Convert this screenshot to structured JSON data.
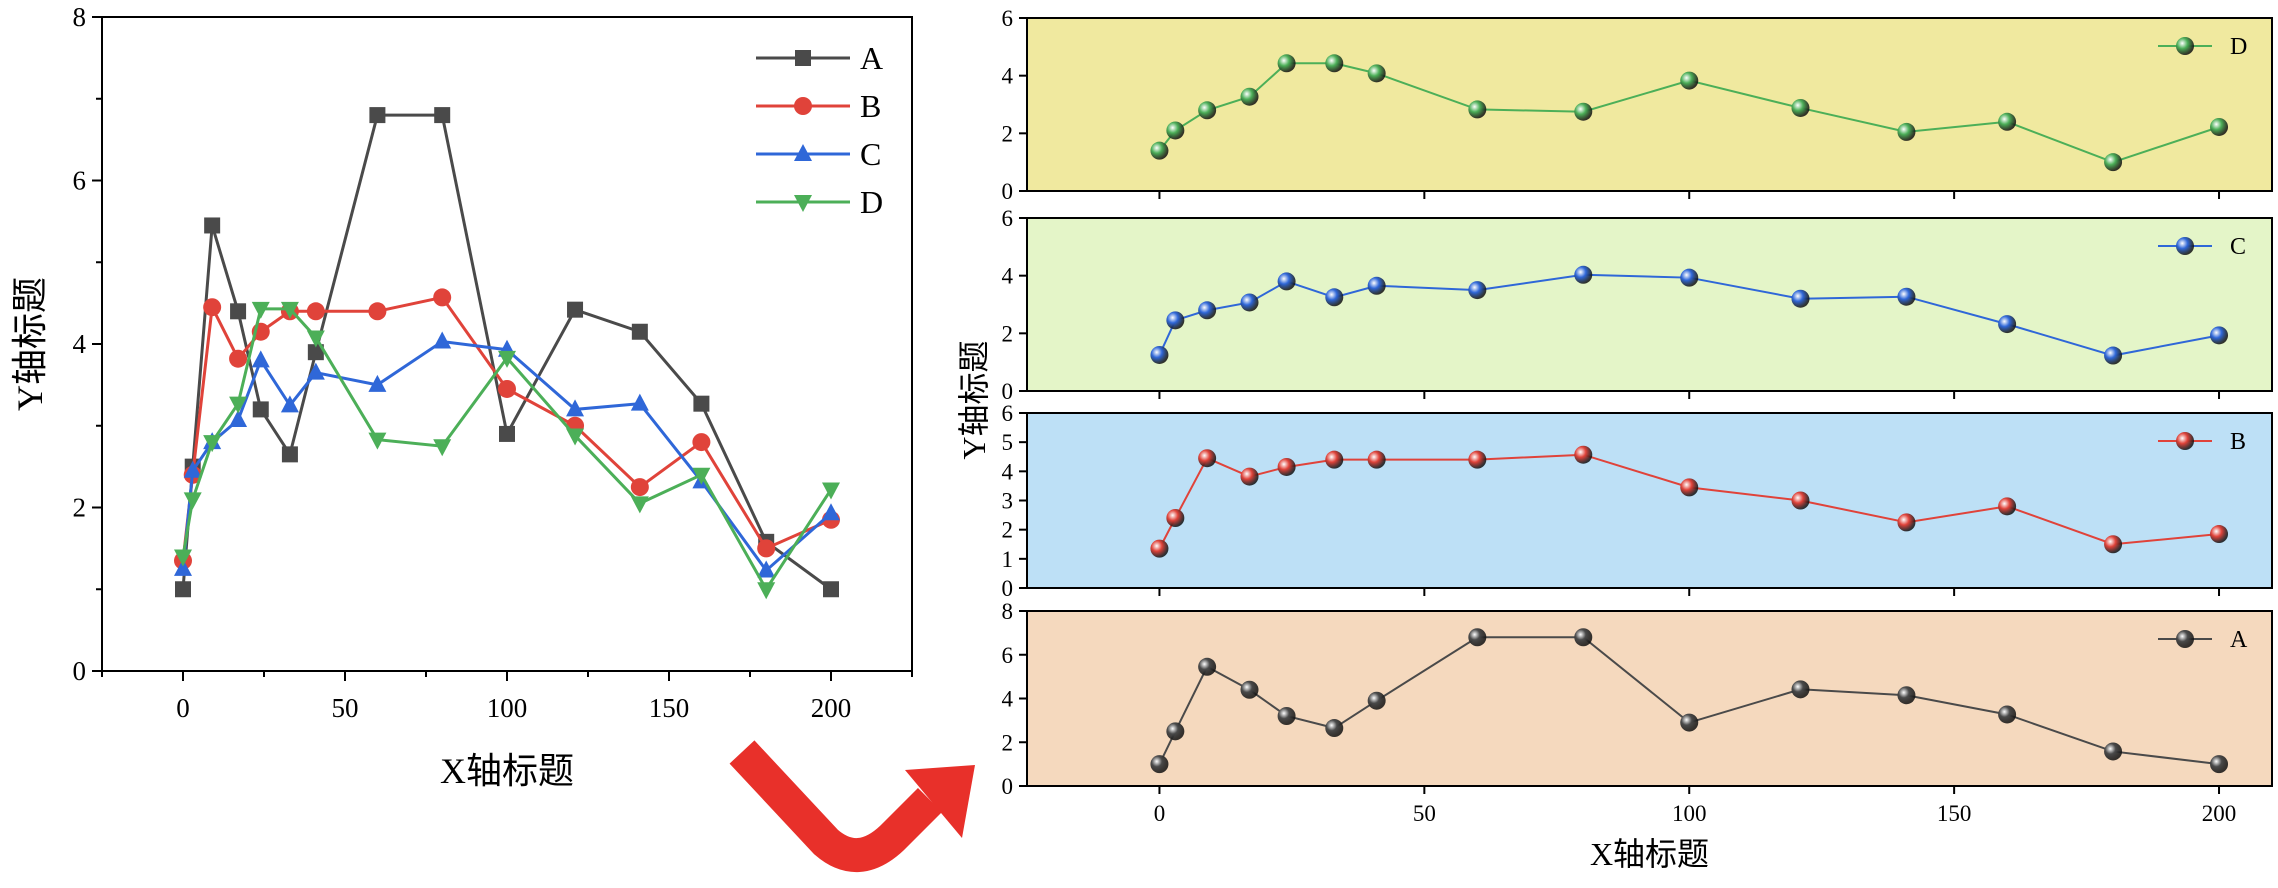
{
  "chart_data": [
    {
      "type": "line",
      "title": "",
      "xlabel": "X轴标题",
      "ylabel": "Y轴标题",
      "xlim": [
        -25,
        225
      ],
      "ylim": [
        0,
        8
      ],
      "xticks": [
        0,
        50,
        100,
        150,
        200
      ],
      "yticks": [
        0,
        2,
        4,
        6,
        8
      ],
      "legend_position": "top-right",
      "series": [
        {
          "name": "A",
          "marker": "square",
          "color": "#4a4a4a",
          "x": [
            0,
            3,
            9,
            17,
            24,
            33,
            41,
            60,
            80,
            100,
            121,
            141,
            160,
            180,
            200
          ],
          "y": [
            1.0,
            2.5,
            5.45,
            4.4,
            3.2,
            2.65,
            3.9,
            6.8,
            6.8,
            2.9,
            4.42,
            4.15,
            3.27,
            1.58,
            1.0
          ]
        },
        {
          "name": "B",
          "marker": "circle",
          "color": "#e0433a",
          "x": [
            0,
            3,
            9,
            17,
            24,
            33,
            41,
            60,
            80,
            100,
            121,
            141,
            160,
            180,
            200
          ],
          "y": [
            1.35,
            2.4,
            4.45,
            3.82,
            4.15,
            4.4,
            4.4,
            4.4,
            4.57,
            3.45,
            3.0,
            2.25,
            2.8,
            1.5,
            1.85
          ]
        },
        {
          "name": "C",
          "marker": "triangle-up",
          "color": "#2f67d8",
          "x": [
            0,
            3,
            9,
            17,
            24,
            33,
            41,
            60,
            80,
            100,
            121,
            141,
            160,
            180,
            200
          ],
          "y": [
            1.25,
            2.45,
            2.8,
            3.07,
            3.8,
            3.25,
            3.65,
            3.5,
            4.03,
            3.93,
            3.2,
            3.27,
            2.32,
            1.23,
            1.93
          ]
        },
        {
          "name": "D",
          "marker": "triangle-down",
          "color": "#4caf58",
          "x": [
            0,
            3,
            9,
            17,
            24,
            33,
            41,
            60,
            80,
            100,
            121,
            141,
            160,
            180,
            200
          ],
          "y": [
            1.4,
            2.1,
            2.8,
            3.27,
            4.43,
            4.43,
            4.08,
            2.83,
            2.75,
            3.83,
            2.88,
            2.05,
            2.4,
            1.0,
            2.22
          ]
        }
      ]
    },
    {
      "type": "line",
      "layout": "stacked-panels",
      "title": "",
      "xlabel": "X轴标题",
      "ylabel": "Y轴标题",
      "xlim": [
        -25,
        210
      ],
      "xticks": [
        0,
        50,
        100,
        150,
        200
      ],
      "panels": [
        {
          "name": "D",
          "color": "#4caf58",
          "background": "#f0e99f",
          "ylim": [
            0,
            6
          ],
          "yticks": [
            0,
            2,
            4,
            6
          ],
          "x": [
            0,
            3,
            9,
            17,
            24,
            33,
            41,
            60,
            80,
            100,
            121,
            141,
            160,
            180,
            200
          ],
          "y": [
            1.4,
            2.1,
            2.8,
            3.27,
            4.43,
            4.43,
            4.08,
            2.83,
            2.75,
            3.83,
            2.88,
            2.05,
            2.4,
            1.0,
            2.22
          ]
        },
        {
          "name": "C",
          "color": "#2f67d8",
          "background": "#e4f5c8",
          "ylim": [
            0,
            6
          ],
          "yticks": [
            0,
            2,
            4,
            6
          ],
          "x": [
            0,
            3,
            9,
            17,
            24,
            33,
            41,
            60,
            80,
            100,
            121,
            141,
            160,
            180,
            200
          ],
          "y": [
            1.25,
            2.45,
            2.8,
            3.07,
            3.8,
            3.25,
            3.65,
            3.5,
            4.03,
            3.93,
            3.2,
            3.27,
            2.32,
            1.23,
            1.93
          ]
        },
        {
          "name": "B",
          "color": "#e0433a",
          "background": "#bde0f6",
          "ylim": [
            0,
            6
          ],
          "yticks": [
            0,
            1,
            2,
            3,
            4,
            5,
            6
          ],
          "x": [
            0,
            3,
            9,
            17,
            24,
            33,
            41,
            60,
            80,
            100,
            121,
            141,
            160,
            180,
            200
          ],
          "y": [
            1.35,
            2.4,
            4.45,
            3.82,
            4.15,
            4.4,
            4.4,
            4.4,
            4.57,
            3.45,
            3.0,
            2.25,
            2.8,
            1.5,
            1.85
          ]
        },
        {
          "name": "A",
          "color": "#4a4a4a",
          "background": "#f5d9be",
          "ylim": [
            0,
            8
          ],
          "yticks": [
            0,
            2,
            4,
            6,
            8
          ],
          "x": [
            0,
            3,
            9,
            17,
            24,
            33,
            41,
            60,
            80,
            100,
            121,
            141,
            160,
            180,
            200
          ],
          "y": [
            1.0,
            2.5,
            5.45,
            4.4,
            3.2,
            2.65,
            3.9,
            6.8,
            6.8,
            2.9,
            4.42,
            4.15,
            3.27,
            1.58,
            1.0
          ]
        }
      ]
    }
  ],
  "arrow_color": "#e8302a"
}
